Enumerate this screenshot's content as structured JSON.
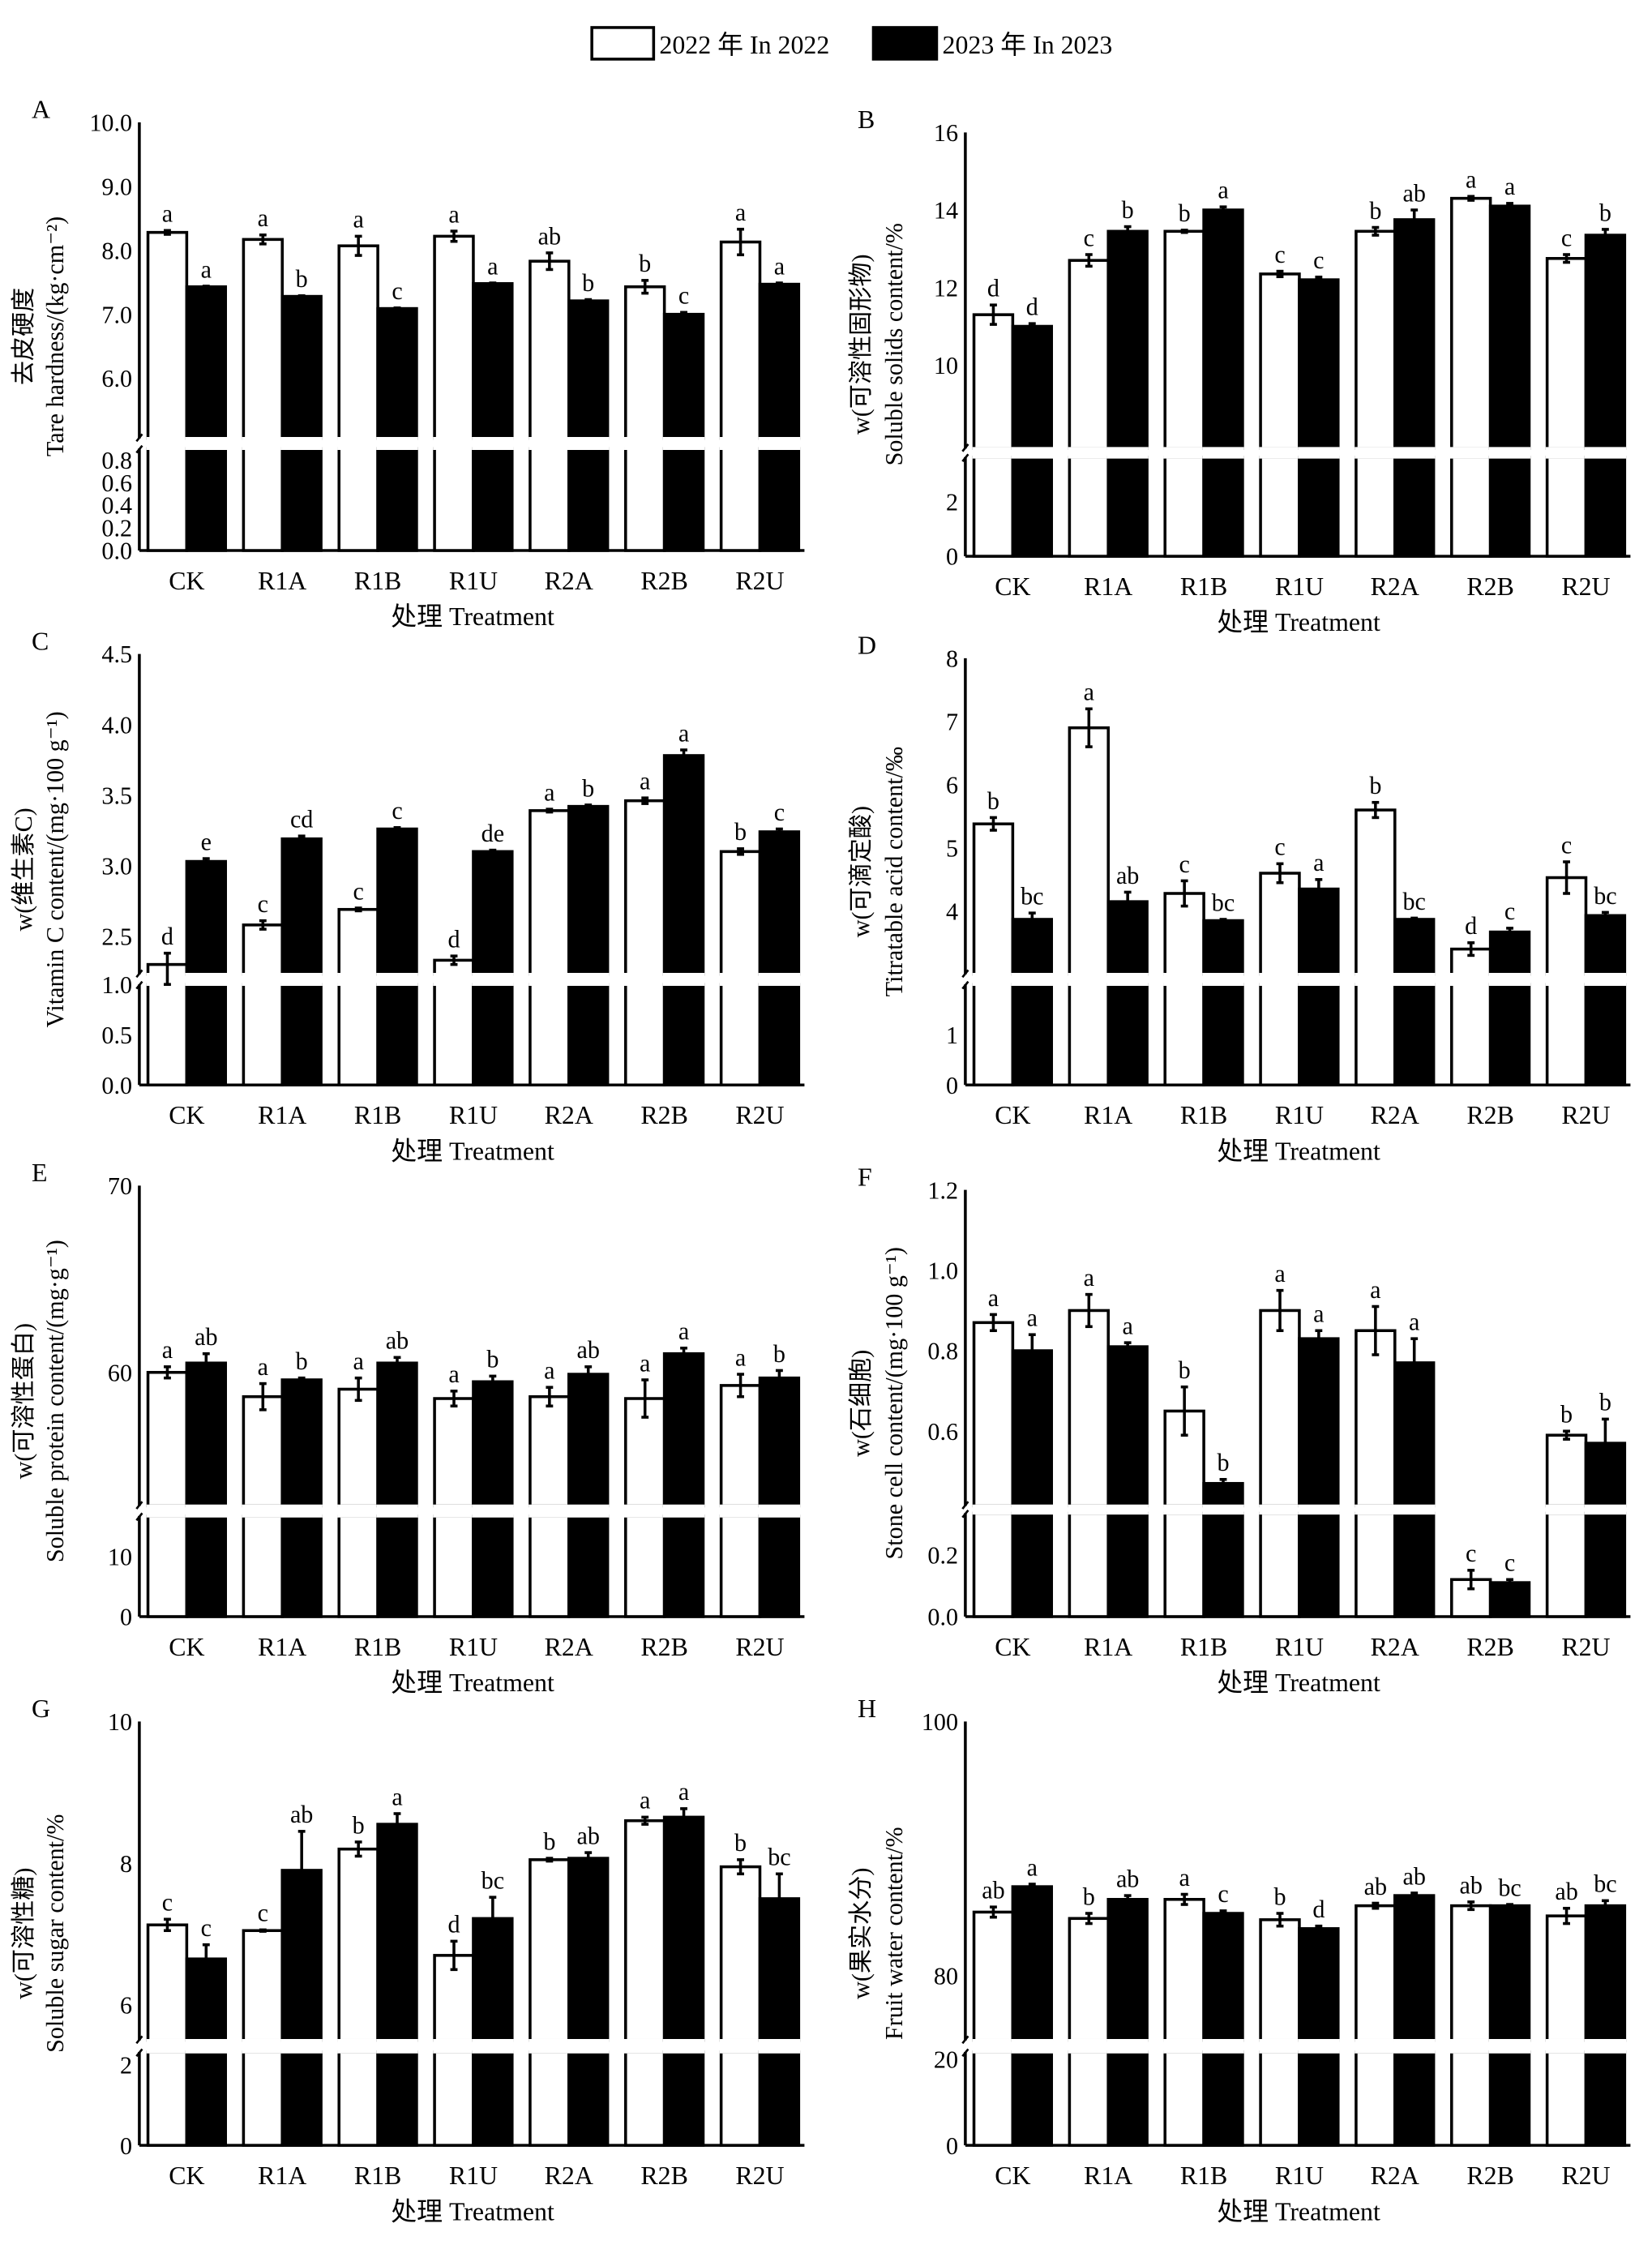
{
  "legend": {
    "series": [
      {
        "name": "2022 年 In 2022",
        "fill": "#ffffff"
      },
      {
        "name": "2023 年 In 2023",
        "fill": "#000000"
      }
    ]
  },
  "chart_data": [
    {
      "panel": "A",
      "type": "bar",
      "ylabel": [
        "去皮硬度",
        "Tare hardness/(kg·cm⁻²)"
      ],
      "xlabel": "处理 Treatment",
      "categories": [
        "CK",
        "R1A",
        "R1B",
        "R1U",
        "R2A",
        "R2B",
        "R2U"
      ],
      "upper_ylim": [
        5.06,
        10
      ],
      "upper_ticks": [
        "6.0",
        "7.0",
        "8.0",
        "9.0",
        "10.0"
      ],
      "lower_ylim": [
        0,
        0.9
      ],
      "lower_ticks": [
        "0.0",
        "0.2",
        "0.4",
        "0.6",
        "0.8"
      ],
      "series": [
        {
          "name": "2022",
          "values": [
            8.28,
            8.17,
            8.07,
            8.22,
            7.83,
            7.43,
            8.13
          ],
          "errors": [
            0.03,
            0.07,
            0.15,
            0.08,
            0.13,
            0.1,
            0.2
          ],
          "letters": [
            "a",
            "a",
            "a",
            "a",
            "ab",
            "b",
            "a"
          ]
        },
        {
          "name": "2023",
          "values": [
            7.43,
            7.28,
            7.09,
            7.48,
            7.21,
            7.0,
            7.47
          ],
          "errors": [
            0.01,
            0.01,
            0.01,
            0.01,
            0.02,
            0.03,
            0.02
          ],
          "letters": [
            "a",
            "b",
            "c",
            "a",
            "b",
            "c",
            "a"
          ]
        }
      ]
    },
    {
      "panel": "B",
      "type": "bar",
      "ylabel": [
        "w(可溶性固形物)",
        "Soluble solids content/%"
      ],
      "xlabel": "处理 Treatment",
      "categories": [
        "CK",
        "R1A",
        "R1B",
        "R1U",
        "R2A",
        "R2B",
        "R2U"
      ],
      "upper_ylim": [
        7.85,
        16
      ],
      "upper_ticks": [
        "10",
        "12",
        "14",
        "16"
      ],
      "lower_ylim": [
        0,
        3.63
      ],
      "lower_ticks": [
        "0",
        "2"
      ],
      "series": [
        {
          "name": "2022",
          "values": [
            11.3,
            12.7,
            13.45,
            12.35,
            13.45,
            14.3,
            12.75
          ],
          "errors": [
            0.25,
            0.15,
            0.03,
            0.07,
            0.1,
            0.05,
            0.1
          ],
          "letters": [
            "d",
            "c",
            "b",
            "c",
            "b",
            "a",
            "c"
          ]
        },
        {
          "name": "2023",
          "values": [
            11.0,
            13.45,
            14.0,
            12.2,
            13.75,
            14.1,
            13.35
          ],
          "errors": [
            0.07,
            0.12,
            0.08,
            0.07,
            0.25,
            0.07,
            0.15
          ],
          "letters": [
            "d",
            "b",
            "a",
            "c",
            "ab",
            "a",
            "b"
          ]
        }
      ]
    },
    {
      "panel": "C",
      "type": "bar",
      "ylabel": [
        "w(维生素C)",
        "Vitamin C content/(mg·100 g⁻¹)"
      ],
      "xlabel": "处理 Treatment",
      "categories": [
        "CK",
        "R1A",
        "R1B",
        "R1U",
        "R2A",
        "R2B",
        "R2U"
      ],
      "upper_ylim": [
        2.23,
        4.5
      ],
      "upper_ticks": [
        "2.5",
        "3.0",
        "3.5",
        "4.0",
        "4.5"
      ],
      "lower_ylim": [
        0,
        1.0
      ],
      "lower_ticks": [
        "0.0",
        "0.5",
        "1.0"
      ],
      "series": [
        {
          "name": "2022",
          "values": [
            2.3,
            2.58,
            2.69,
            2.33,
            3.39,
            3.46,
            3.1
          ],
          "errors": [
            0.08,
            0.03,
            0.01,
            0.03,
            0.01,
            0.02,
            0.02
          ],
          "letters": [
            "d",
            "c",
            "c",
            "d",
            "a",
            "a",
            "b"
          ]
        },
        {
          "name": "2023",
          "values": [
            3.03,
            3.19,
            3.26,
            3.1,
            3.42,
            3.78,
            3.24
          ],
          "errors": [
            0.02,
            0.02,
            0.01,
            0.01,
            0.01,
            0.04,
            0.02
          ],
          "letters": [
            "e",
            "cd",
            "c",
            "de",
            "b",
            "a",
            "c"
          ]
        }
      ]
    },
    {
      "panel": "D",
      "type": "bar",
      "ylabel": [
        "w(可滴定酸)",
        "Titratable acid content/‰"
      ],
      "xlabel": "处理 Treatment",
      "categories": [
        "CK",
        "R1A",
        "R1B",
        "R1U",
        "R2A",
        "R2B",
        "R2U"
      ],
      "upper_ylim": [
        3.0,
        8
      ],
      "upper_ticks": [
        "4",
        "5",
        "6",
        "7",
        "8"
      ],
      "lower_ylim": [
        0,
        2.0
      ],
      "lower_ticks": [
        "0",
        "1"
      ],
      "series": [
        {
          "name": "2022",
          "values": [
            5.38,
            6.9,
            4.28,
            4.6,
            5.6,
            3.4,
            4.53
          ],
          "errors": [
            0.1,
            0.3,
            0.2,
            0.15,
            0.12,
            0.1,
            0.25
          ],
          "letters": [
            "b",
            "a",
            "c",
            "c",
            "b",
            "d",
            "c"
          ]
        },
        {
          "name": "2023",
          "values": [
            3.87,
            4.15,
            3.85,
            4.35,
            3.87,
            3.67,
            3.93
          ],
          "errors": [
            0.1,
            0.15,
            0.02,
            0.15,
            0.02,
            0.06,
            0.05
          ],
          "letters": [
            "bc",
            "ab",
            "bc",
            "a",
            "bc",
            "c",
            "bc"
          ]
        }
      ]
    },
    {
      "panel": "E",
      "type": "bar",
      "ylabel": [
        "w(可溶性蛋白)",
        "Soluble protein content/(mg·g⁻¹)"
      ],
      "xlabel": "处理 Treatment",
      "categories": [
        "CK",
        "R1A",
        "R1B",
        "R1U",
        "R2A",
        "R2B",
        "R2U"
      ],
      "upper_ylim": [
        52.85,
        70
      ],
      "upper_ticks": [
        "60",
        "70"
      ],
      "lower_ylim": [
        0,
        16.7
      ],
      "lower_ticks": [
        "0",
        "10"
      ],
      "series": [
        {
          "name": "2022",
          "values": [
            60.0,
            58.7,
            59.1,
            58.6,
            58.7,
            58.6,
            59.3
          ],
          "errors": [
            0.3,
            0.7,
            0.6,
            0.4,
            0.5,
            1.0,
            0.6
          ],
          "letters": [
            "a",
            "a",
            "a",
            "a",
            "a",
            "a",
            "a"
          ]
        },
        {
          "name": "2023",
          "values": [
            60.5,
            59.6,
            60.5,
            59.5,
            59.9,
            61.0,
            59.7
          ],
          "errors": [
            0.5,
            0.1,
            0.3,
            0.3,
            0.4,
            0.3,
            0.4
          ],
          "letters": [
            "ab",
            "b",
            "ab",
            "b",
            "ab",
            "a",
            "b"
          ]
        }
      ]
    },
    {
      "panel": "F",
      "type": "bar",
      "ylabel": [
        "w(石细胞)",
        "Stone cell content/(mg·100 g⁻¹)"
      ],
      "xlabel": "处理 Treatment",
      "categories": [
        "CK",
        "R1A",
        "R1B",
        "R1U",
        "R2A",
        "R2B",
        "R2U"
      ],
      "upper_ylim": [
        0.414,
        1.2
      ],
      "upper_ticks": [
        "0.6",
        "0.8",
        "1.0",
        "1.2"
      ],
      "lower_ylim": [
        0,
        0.335
      ],
      "lower_ticks": [
        "0.0",
        "0.2"
      ],
      "series": [
        {
          "name": "2022",
          "values": [
            0.87,
            0.9,
            0.65,
            0.9,
            0.85,
            0.12,
            0.59
          ],
          "errors": [
            0.02,
            0.04,
            0.06,
            0.05,
            0.06,
            0.03,
            0.01
          ],
          "letters": [
            "a",
            "a",
            "b",
            "a",
            "a",
            "c",
            "b"
          ]
        },
        {
          "name": "2023",
          "values": [
            0.8,
            0.81,
            0.47,
            0.83,
            0.77,
            0.11,
            0.57
          ],
          "errors": [
            0.04,
            0.01,
            0.01,
            0.02,
            0.06,
            0.01,
            0.06
          ],
          "letters": [
            "a",
            "a",
            "b",
            "a",
            "a",
            "c",
            "b"
          ]
        }
      ]
    },
    {
      "panel": "G",
      "type": "bar",
      "ylabel": [
        "w(可溶性糖)",
        "Soluble sugar content/%"
      ],
      "xlabel": "处理 Treatment",
      "categories": [
        "CK",
        "R1A",
        "R1B",
        "R1U",
        "R2A",
        "R2B",
        "R2U"
      ],
      "upper_ylim": [
        5.5,
        10
      ],
      "upper_ticks": [
        "6",
        "8",
        "10"
      ],
      "lower_ylim": [
        0,
        2.32
      ],
      "lower_ticks": [
        "0",
        "2"
      ],
      "series": [
        {
          "name": "2022",
          "values": [
            7.13,
            7.05,
            8.2,
            6.7,
            8.05,
            8.6,
            7.95
          ],
          "errors": [
            0.08,
            0.01,
            0.1,
            0.2,
            0.02,
            0.05,
            0.1
          ],
          "letters": [
            "c",
            "c",
            "b",
            "d",
            "b",
            "a",
            "b"
          ]
        },
        {
          "name": "2023",
          "values": [
            6.65,
            7.9,
            8.55,
            7.22,
            8.07,
            8.65,
            7.5
          ],
          "errors": [
            0.2,
            0.55,
            0.15,
            0.3,
            0.08,
            0.12,
            0.35
          ],
          "letters": [
            "c",
            "ab",
            "a",
            "bc",
            "ab",
            "a",
            "bc"
          ]
        }
      ]
    },
    {
      "panel": "H",
      "type": "bar",
      "ylabel": [
        "w(果实水分)",
        "Fruit water content/%"
      ],
      "xlabel": "处理 Treatment",
      "categories": [
        "CK",
        "R1A",
        "R1B",
        "R1U",
        "R2A",
        "R2B",
        "R2U"
      ],
      "upper_ylim": [
        74.9,
        100
      ],
      "upper_ticks": [
        "80",
        "100"
      ],
      "lower_ylim": [
        0,
        21.7
      ],
      "lower_ticks": [
        "0",
        "20"
      ],
      "series": [
        {
          "name": "2022",
          "values": [
            85.0,
            84.5,
            86.0,
            84.4,
            85.5,
            85.5,
            84.7
          ],
          "errors": [
            0.4,
            0.4,
            0.4,
            0.5,
            0.2,
            0.3,
            0.6
          ],
          "letters": [
            "ab",
            "b",
            "a",
            "b",
            "ab",
            "ab",
            "ab"
          ]
        },
        {
          "name": "2023",
          "values": [
            87.0,
            86.0,
            84.9,
            83.7,
            86.3,
            85.5,
            85.5
          ],
          "errors": [
            0.2,
            0.3,
            0.2,
            0.2,
            0.2,
            0.1,
            0.4
          ],
          "letters": [
            "a",
            "ab",
            "c",
            "d",
            "ab",
            "bc",
            "bc"
          ]
        }
      ]
    }
  ]
}
